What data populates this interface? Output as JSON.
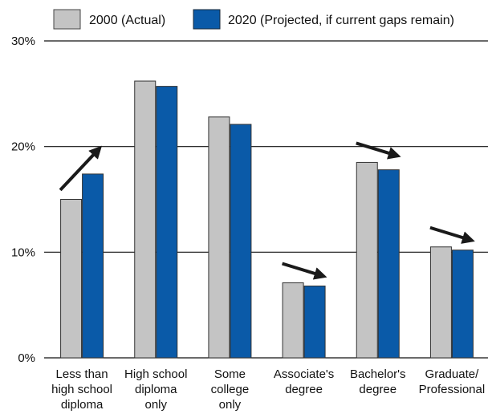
{
  "chart_data": {
    "type": "bar",
    "title": "",
    "xlabel": "",
    "ylabel": "",
    "ylim": [
      0,
      30
    ],
    "yticks": [
      "0%",
      "10%",
      "20%",
      "30%"
    ],
    "ytick_values": [
      0,
      10,
      20,
      30
    ],
    "grid": true,
    "legend_position": "top",
    "categories": [
      [
        "Less than",
        "high school",
        "diploma"
      ],
      [
        "High school",
        "diploma",
        "only"
      ],
      [
        "Some",
        "college",
        "only"
      ],
      [
        "Associate's",
        "degree"
      ],
      [
        "Bachelor's",
        "degree"
      ],
      [
        "Graduate/",
        "Professional"
      ]
    ],
    "series": [
      {
        "name": "2000 (Actual)",
        "color": "#c4c4c4",
        "values": [
          15.0,
          26.2,
          22.8,
          7.1,
          18.5,
          10.5
        ]
      },
      {
        "name": "2020 (Projected, if current gaps remain)",
        "color": "#0a5aa8",
        "values": [
          17.4,
          25.7,
          22.1,
          6.8,
          17.8,
          10.2
        ]
      }
    ],
    "trend_arrows": [
      "up",
      "none",
      "none",
      "down",
      "down",
      "down"
    ],
    "arrow_color": "#1a1a1a"
  }
}
